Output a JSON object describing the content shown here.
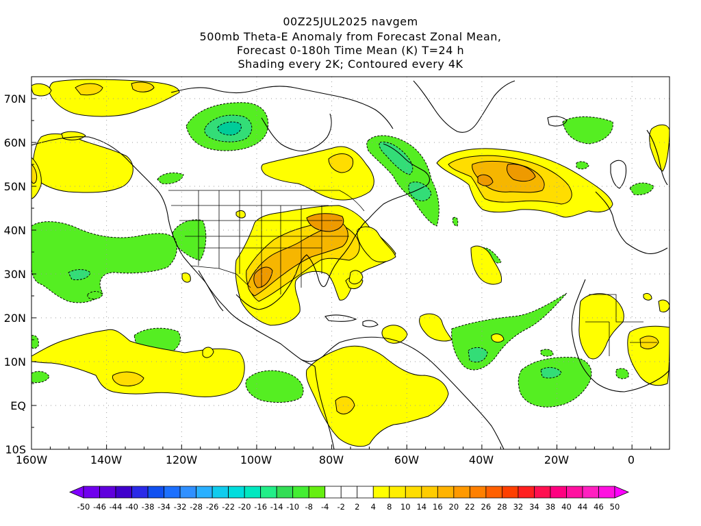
{
  "title_lines": [
    "00Z25JUL2025 navgem",
    "500mb Theta-E Anomaly from Forecast Zonal Mean,",
    "Forecast 0-180h Time Mean (K) T=24 h",
    "Shading every 2K; Contoured every 4K"
  ],
  "map": {
    "lon_range": [
      -160,
      10
    ],
    "lat_range": [
      -10,
      75
    ],
    "lon_ticks": [
      "160W",
      "140W",
      "120W",
      "100W",
      "80W",
      "60W",
      "40W",
      "20W",
      "0"
    ],
    "lat_ticks": [
      "10S",
      "EQ",
      "10N",
      "20N",
      "30N",
      "40N",
      "50N",
      "60N",
      "70N"
    ],
    "gridlines": "dotted",
    "colors": {
      "pos_2": "#ffff00",
      "pos_4": "#ffdd00",
      "pos_6": "#f6b600",
      "pos_8": "#ee9a00",
      "neg_2": "#55ee22",
      "neg_4": "#33dd77",
      "neg_6": "#00cc99",
      "land_outline": "#000000",
      "background": "#ffffff"
    }
  },
  "colorbar": {
    "labels": [
      "-50",
      "-46",
      "-44",
      "-40",
      "-38",
      "-34",
      "-32",
      "-28",
      "-26",
      "-22",
      "-20",
      "-16",
      "-14",
      "-10",
      "-8",
      "-4",
      "-2",
      "2",
      "4",
      "8",
      "10",
      "14",
      "16",
      "20",
      "22",
      "26",
      "28",
      "32",
      "34",
      "38",
      "40",
      "44",
      "46",
      "50"
    ],
    "colors": [
      "#8000ff",
      "#7000ee",
      "#6000dd",
      "#4000cc",
      "#2a2ae8",
      "#1050f0",
      "#1c70ff",
      "#3090ff",
      "#2ab0ff",
      "#10ccee",
      "#00dddd",
      "#00e8c0",
      "#22ee88",
      "#33dd55",
      "#44ee33",
      "#66ee11",
      "#ffffff",
      "#ffffff",
      "#ffffff",
      "#ffff00",
      "#ffee00",
      "#ffdd00",
      "#ffcc00",
      "#ffb300",
      "#ff9900",
      "#ff8000",
      "#ff6000",
      "#ff4000",
      "#ff2020",
      "#ff1050",
      "#ff0080",
      "#ff10a0",
      "#ff20c0",
      "#ff10e0",
      "#ff00ff"
    ]
  }
}
